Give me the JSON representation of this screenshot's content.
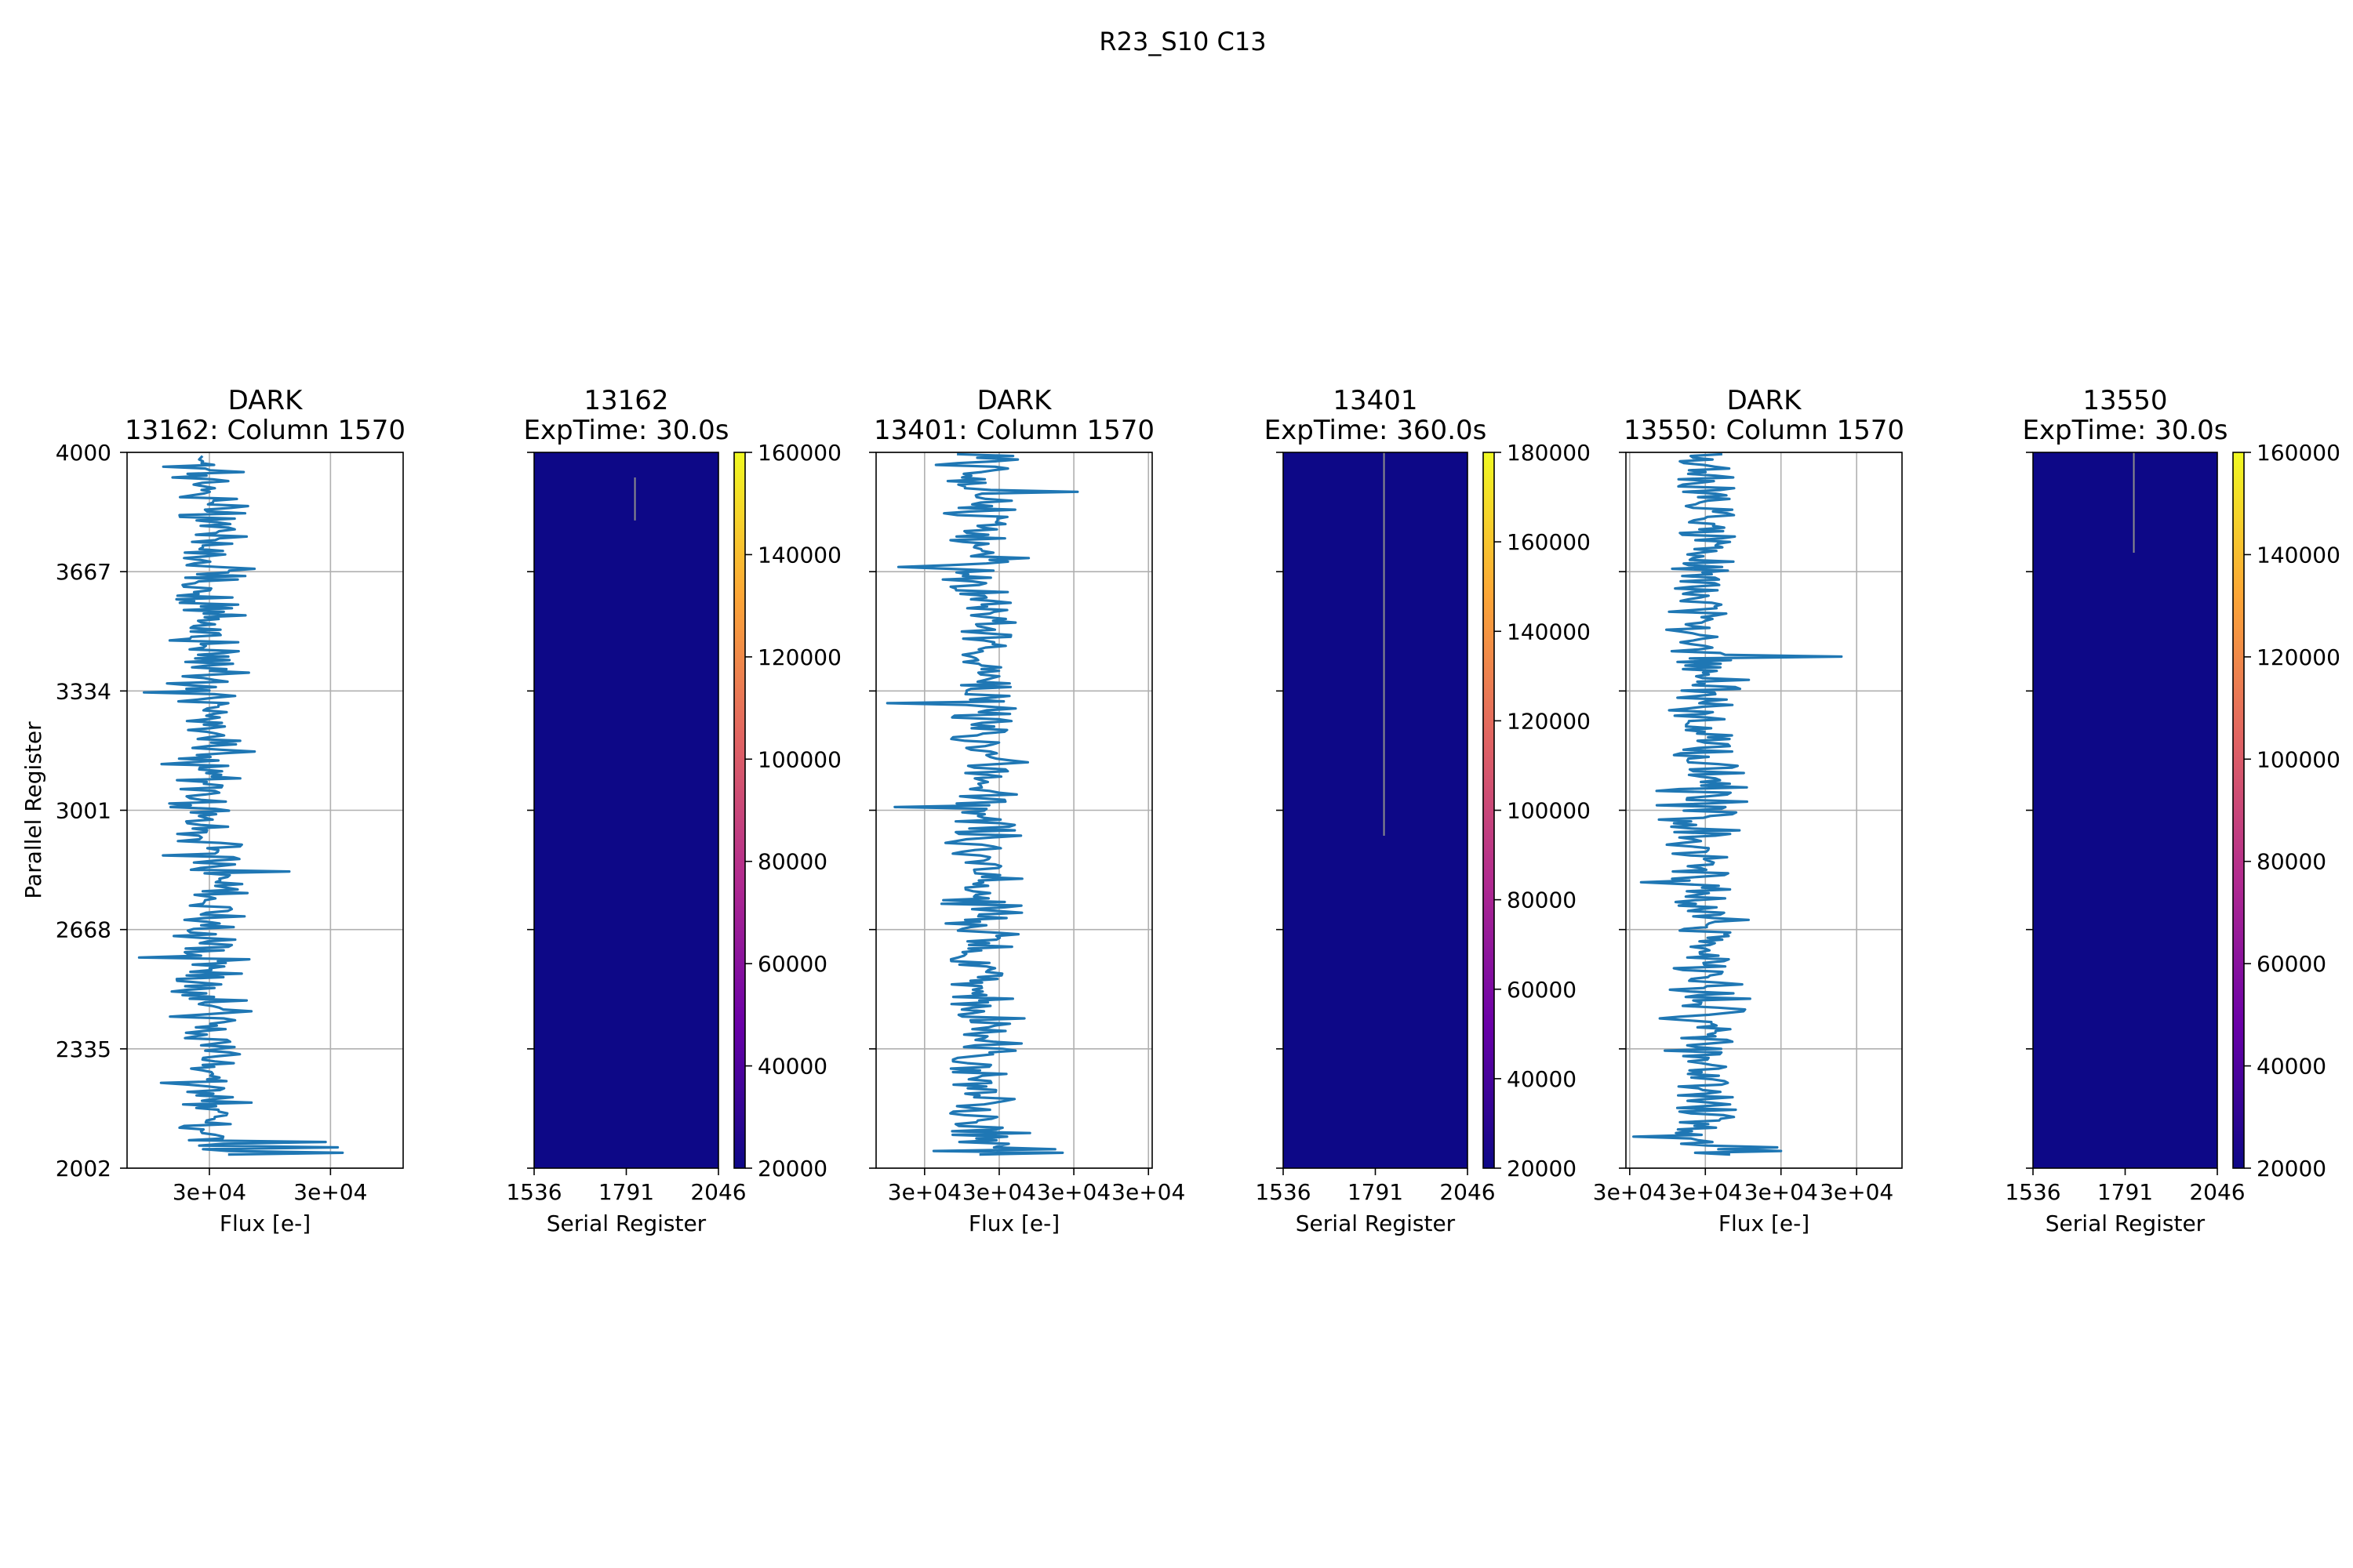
{
  "figure_title": "R23_S10 C13",
  "colors": {
    "line": "#1f77b4",
    "grid": "#b0b0b0",
    "image_background": "#0d0887",
    "image_feature": "#8c8c8c",
    "colormap": [
      "#0d0887",
      "#6a00a8",
      "#b12a90",
      "#e16462",
      "#fca636",
      "#f0f921"
    ]
  },
  "chart_data": [
    {
      "type": "line",
      "title_line1": "DARK",
      "title_line2": "13162: Column 1570",
      "xlabel": "Flux [e-]",
      "ylabel": "Parallel Register",
      "x_tick_labels": [
        "3e+04",
        "3e+04"
      ],
      "x_tick_values": [
        29900,
        30400
      ],
      "xlim": [
        29560,
        30700
      ],
      "y_ticks": [
        2002,
        2335,
        2668,
        3001,
        3334,
        3667,
        4000
      ],
      "ylim": [
        2002,
        4000
      ],
      "grid": true,
      "profile_center": 29900,
      "profile_spread": 140,
      "y_range": [
        2040,
        3990
      ],
      "spikes": [
        {
          "y": 2045,
          "x": 30450
        },
        {
          "y": 2060,
          "x": 30430
        },
        {
          "y": 2075,
          "x": 30380
        },
        {
          "y": 2590,
          "x": 29610
        },
        {
          "y": 3330,
          "x": 29630
        },
        {
          "y": 2830,
          "x": 30230
        }
      ]
    },
    {
      "type": "heatmap",
      "title_line1": "13162",
      "title_line2": "ExpTime: 30.0s",
      "xlabel": "Serial Register",
      "x_ticks": [
        1536,
        1791,
        2046
      ],
      "xlim": [
        1536,
        2046
      ],
      "ylim": [
        2002,
        4000
      ],
      "colorbar_ticks": [
        20000,
        40000,
        60000,
        80000,
        100000,
        120000,
        140000,
        160000
      ],
      "colorbar_range": [
        20000,
        160000
      ],
      "background_value": 20000,
      "features": [
        {
          "column": 1815,
          "y_from": 3810,
          "y_to": 3930
        }
      ]
    },
    {
      "type": "line",
      "title_line1": "DARK",
      "title_line2": "13401: Column 1570",
      "xlabel": "Flux [e-]",
      "x_tick_labels": [
        "3e+04",
        "3e+04",
        "3e+04",
        "3e+04"
      ],
      "x_tick_values": [
        29900,
        30100,
        30300,
        30500
      ],
      "xlim": [
        29770,
        30510
      ],
      "y_ticks": [
        2002,
        2335,
        2668,
        3001,
        3334,
        3667,
        4000
      ],
      "ylim": [
        2002,
        4000
      ],
      "grid": true,
      "profile_center": 30050,
      "profile_spread": 95,
      "y_range": [
        2040,
        3995
      ],
      "spikes": [
        {
          "y": 2045,
          "x": 30270
        },
        {
          "y": 2055,
          "x": 30250
        },
        {
          "y": 3010,
          "x": 29820
        },
        {
          "y": 3300,
          "x": 29800
        },
        {
          "y": 3680,
          "x": 29830
        },
        {
          "y": 3890,
          "x": 30310
        }
      ]
    },
    {
      "type": "heatmap",
      "title_line1": "13401",
      "title_line2": "ExpTime: 360.0s",
      "xlabel": "Serial Register",
      "x_ticks": [
        1536,
        1791,
        2046
      ],
      "xlim": [
        1536,
        2046
      ],
      "ylim": [
        2002,
        4000
      ],
      "colorbar_ticks": [
        20000,
        40000,
        60000,
        80000,
        100000,
        120000,
        140000,
        160000,
        180000
      ],
      "colorbar_range": [
        20000,
        180000
      ],
      "background_value": 20000,
      "features": [
        {
          "column": 1815,
          "y_from": 2930,
          "y_to": 4000
        }
      ]
    },
    {
      "type": "line",
      "title_line1": "DARK",
      "title_line2": "13550: Column 1570",
      "xlabel": "Flux [e-]",
      "x_tick_labels": [
        "3e+04",
        "3e+04",
        "3e+04",
        "3e+04"
      ],
      "x_tick_values": [
        29800,
        30000,
        30200,
        30400
      ],
      "xlim": [
        29790,
        30520
      ],
      "y_ticks": [
        2002,
        2335,
        2668,
        3001,
        3334,
        3667,
        4000
      ],
      "ylim": [
        2002,
        4000
      ],
      "grid": true,
      "profile_center": 30000,
      "profile_spread": 95,
      "y_range": [
        2040,
        3995
      ],
      "spikes": [
        {
          "y": 2050,
          "x": 30200
        },
        {
          "y": 2060,
          "x": 30190
        },
        {
          "y": 2090,
          "x": 29810
        },
        {
          "y": 2800,
          "x": 29830
        },
        {
          "y": 3430,
          "x": 30360
        }
      ]
    },
    {
      "type": "heatmap",
      "title_line1": "13550",
      "title_line2": "ExpTime: 30.0s",
      "xlabel": "Serial Register",
      "x_ticks": [
        1536,
        1791,
        2046
      ],
      "xlim": [
        1536,
        2046
      ],
      "ylim": [
        2002,
        4000
      ],
      "colorbar_ticks": [
        20000,
        40000,
        60000,
        80000,
        100000,
        120000,
        140000,
        160000
      ],
      "colorbar_range": [
        20000,
        160000
      ],
      "background_value": 20000,
      "features": [
        {
          "column": 1815,
          "y_from": 3720,
          "y_to": 4000
        }
      ]
    }
  ]
}
